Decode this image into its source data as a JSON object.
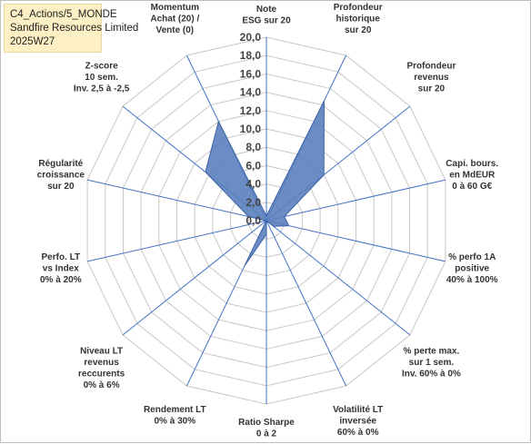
{
  "title": {
    "line1": "C4_Actions/5_MONDE",
    "line2": "Sandfire Resources Limited",
    "line3": "2025W27"
  },
  "chart_data": {
    "type": "radar",
    "rmax": 20,
    "ticks": [
      "0,0",
      "2,0",
      "4,0",
      "6,0",
      "8,0",
      "10,0",
      "12,0",
      "14,0",
      "16,0",
      "18,0",
      "20,0"
    ],
    "axes": [
      [
        "Note",
        "ESG sur 20"
      ],
      [
        "Profondeur",
        "historique",
        "sur 20"
      ],
      [
        "Profondeur",
        "revenus",
        "sur 20"
      ],
      [
        "Capi. bours.",
        "en MdEUR",
        "0 à 60 G€"
      ],
      [
        "% perfo 1A",
        "positive",
        "40% à 100%"
      ],
      [
        "% perte max.",
        "sur 1 sem.",
        "Inv. 60% à 0%"
      ],
      [
        "Volatilité LT",
        "inversée",
        "60% à 0%"
      ],
      [
        "Ratio Sharpe",
        "0 à 2"
      ],
      [
        "Rendement LT",
        "0% à 30%"
      ],
      [
        "Niveau LT",
        "revenus",
        "reccurents",
        "0% à 6%"
      ],
      [
        "Perfo. LT",
        "vs Index",
        "0% à 20%"
      ],
      [
        "Régularité",
        "croissance",
        "sur 20"
      ],
      [
        "Z-score",
        "10 sem.",
        "Inv. 2,5 à -2,5"
      ],
      [
        "Momentum",
        "Achat (20) /",
        "Vente (0)"
      ]
    ],
    "values": [
      0.5,
      14.5,
      8.0,
      2.0,
      2.5,
      1.0,
      0,
      1.5,
      5.5,
      0,
      0,
      2.0,
      8.5,
      12.0
    ],
    "series": [
      {
        "values": [
          0.5,
          14.5,
          8.0,
          2.0,
          2.5,
          1.0,
          0,
          1.5,
          5.5,
          0,
          0,
          2.0,
          8.5,
          12.0
        ]
      }
    ],
    "fill_color": "#5b80be",
    "line_color": "#3d64a6",
    "axis_color": "#4472c4",
    "grid_color": "#c8c8c8"
  }
}
